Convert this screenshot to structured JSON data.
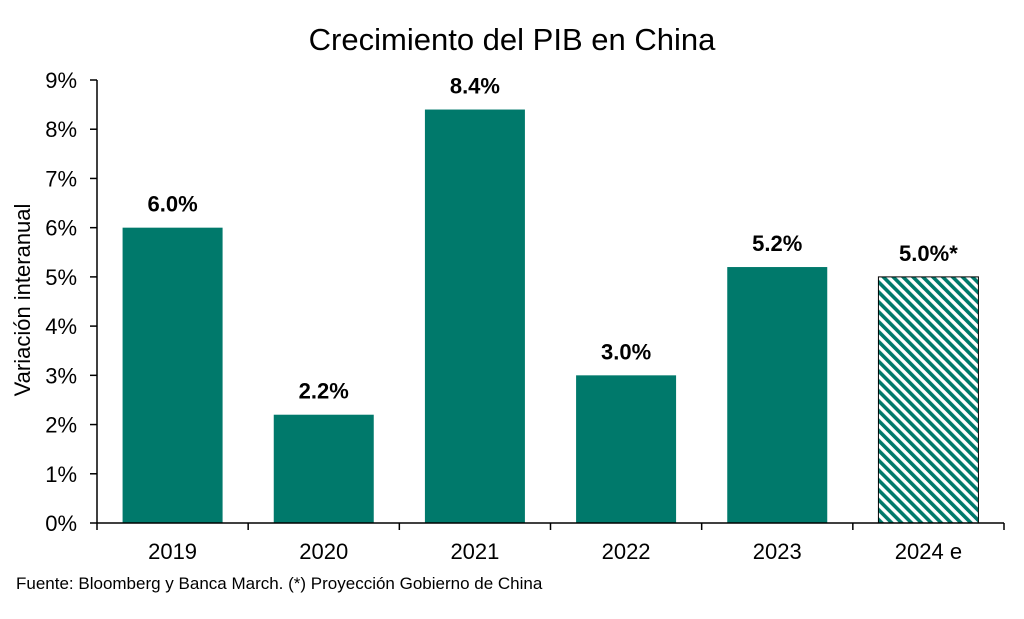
{
  "chart_data": {
    "type": "bar",
    "title": "Crecimiento del PIB en China",
    "xlabel": "",
    "ylabel": "Variación interanual",
    "categories": [
      "2019",
      "2020",
      "2021",
      "2022",
      "2023",
      "2024 e"
    ],
    "values": [
      6.0,
      2.2,
      8.4,
      3.0,
      5.2,
      5.0
    ],
    "data_labels": [
      "6.0%",
      "2.2%",
      "8.4%",
      "3.0%",
      "5.2%",
      "5.0%*"
    ],
    "projected": [
      false,
      false,
      false,
      false,
      false,
      true
    ],
    "ylim": [
      0,
      9
    ],
    "yticks": [
      0,
      1,
      2,
      3,
      4,
      5,
      6,
      7,
      8,
      9
    ],
    "ytick_labels": [
      "0%",
      "1%",
      "2%",
      "3%",
      "4%",
      "5%",
      "6%",
      "7%",
      "8%",
      "9%"
    ],
    "grid": false,
    "legend": "none",
    "bar_color": "#00796b",
    "source": "Fuente: Bloomberg y Banca March. (*) Proyección Gobierno de China"
  }
}
